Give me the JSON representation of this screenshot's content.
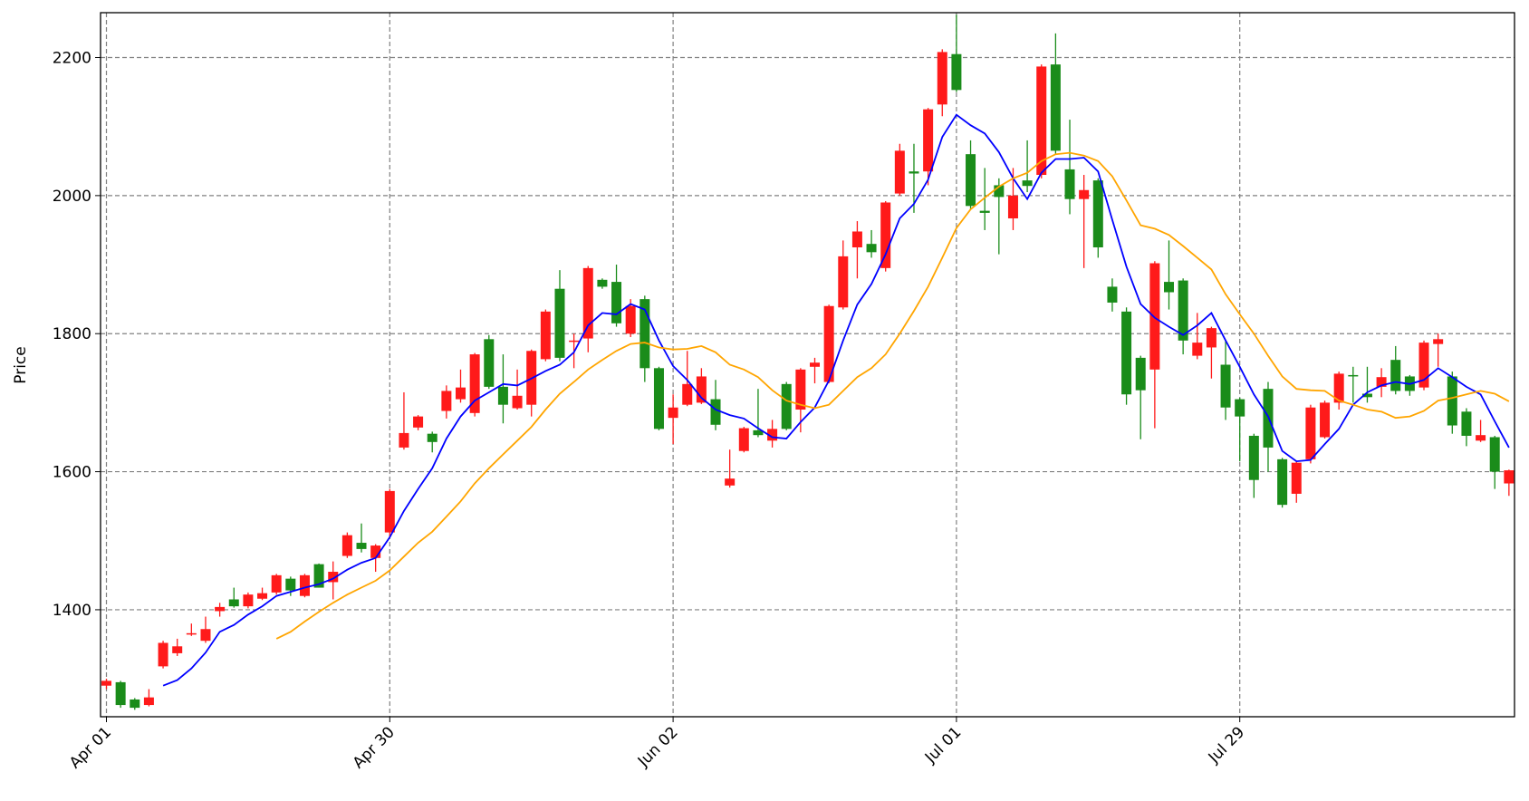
{
  "chart_data": {
    "type": "candlestick",
    "ylabel": "Price",
    "categories": [
      "Apr 01",
      null,
      null,
      null,
      null,
      null,
      null,
      null,
      null,
      null,
      null,
      null,
      null,
      null,
      null,
      null,
      null,
      null,
      null,
      null,
      "Apr 30",
      null,
      null,
      null,
      null,
      null,
      null,
      null,
      null,
      null,
      null,
      null,
      null,
      null,
      null,
      null,
      null,
      null,
      null,
      null,
      "Jun 02",
      null,
      null,
      null,
      null,
      null,
      null,
      null,
      null,
      null,
      null,
      null,
      null,
      null,
      null,
      null,
      null,
      null,
      null,
      null,
      "Jul 01",
      null,
      null,
      null,
      null,
      null,
      null,
      null,
      null,
      null,
      null,
      null,
      null,
      null,
      null,
      null,
      null,
      null,
      null,
      null,
      "Jul 29",
      null,
      null,
      null,
      null,
      null,
      null,
      null,
      null,
      null,
      null,
      null,
      null,
      null,
      null,
      null,
      null,
      null,
      null,
      null
    ],
    "open": [
      1290,
      1295,
      1270,
      1262,
      1318,
      1337,
      1364,
      1355,
      1398,
      1415,
      1405,
      1416,
      1425,
      1445,
      1420,
      1466,
      1440,
      1478,
      1497,
      1475,
      1512,
      1635,
      1664,
      1655,
      1688,
      1705,
      1685,
      1792,
      1723,
      1692,
      1697,
      1763,
      1865,
      1788,
      1793,
      1878,
      1875,
      1800,
      1850,
      1750,
      1678,
      1697,
      1700,
      1705,
      1580,
      1630,
      1660,
      1645,
      1727,
      1690,
      1752,
      1730,
      1838,
      1925,
      1930,
      1895,
      2003,
      2035,
      2035,
      2132,
      2205,
      2060,
      1978,
      2015,
      1967,
      2022,
      2030,
      2190,
      2038,
      1995,
      2022,
      1868,
      1832,
      1765,
      1748,
      1875,
      1877,
      1768,
      1780,
      1755,
      1705,
      1652,
      1720,
      1618,
      1568,
      1618,
      1650,
      1700,
      1740,
      1713,
      1723,
      1762,
      1738,
      1722,
      1785,
      1738,
      1687,
      1645,
      1650,
      1583
    ],
    "high": [
      1300,
      1297,
      1272,
      1285,
      1355,
      1358,
      1380,
      1390,
      1410,
      1432,
      1425,
      1432,
      1452,
      1448,
      1452,
      1467,
      1470,
      1512,
      1525,
      1495,
      1575,
      1715,
      1682,
      1658,
      1725,
      1748,
      1772,
      1798,
      1770,
      1748,
      1777,
      1835,
      1892,
      1800,
      1898,
      1880,
      1900,
      1850,
      1855,
      1752,
      1712,
      1775,
      1750,
      1733,
      1632,
      1665,
      1720,
      1675,
      1730,
      1750,
      1765,
      1842,
      1935,
      1963,
      1950,
      1992,
      2075,
      2075,
      2127,
      2212,
      2262,
      2080,
      2040,
      2025,
      2040,
      2080,
      2190,
      2235,
      2110,
      2030,
      2025,
      1880,
      1838,
      1768,
      1905,
      1935,
      1880,
      1830,
      1810,
      1790,
      1707,
      1655,
      1730,
      1620,
      1615,
      1697,
      1703,
      1745,
      1752,
      1752,
      1750,
      1782,
      1740,
      1790,
      1800,
      1745,
      1692,
      1675,
      1652,
      1603
    ],
    "low": [
      1285,
      1258,
      1255,
      1260,
      1315,
      1333,
      1362,
      1352,
      1390,
      1403,
      1402,
      1414,
      1422,
      1420,
      1418,
      1432,
      1415,
      1475,
      1483,
      1455,
      1505,
      1632,
      1660,
      1628,
      1677,
      1700,
      1680,
      1720,
      1670,
      1690,
      1680,
      1760,
      1760,
      1750,
      1773,
      1865,
      1810,
      1795,
      1730,
      1660,
      1640,
      1695,
      1698,
      1660,
      1577,
      1628,
      1650,
      1635,
      1660,
      1657,
      1728,
      1728,
      1835,
      1880,
      1910,
      1890,
      2000,
      1975,
      2015,
      2115,
      2150,
      1980,
      1950,
      1915,
      1950,
      2005,
      2025,
      2060,
      1973,
      1895,
      1910,
      1832,
      1697,
      1647,
      1663,
      1835,
      1770,
      1763,
      1735,
      1675,
      1615,
      1562,
      1600,
      1548,
      1555,
      1612,
      1648,
      1690,
      1700,
      1700,
      1708,
      1712,
      1710,
      1718,
      1752,
      1655,
      1637,
      1643,
      1575,
      1565
    ],
    "close": [
      1297,
      1262,
      1258,
      1273,
      1352,
      1347,
      1366,
      1372,
      1404,
      1405,
      1422,
      1424,
      1450,
      1428,
      1450,
      1432,
      1455,
      1508,
      1488,
      1493,
      1572,
      1656,
      1680,
      1643,
      1717,
      1722,
      1770,
      1723,
      1697,
      1710,
      1775,
      1832,
      1765,
      1790,
      1895,
      1868,
      1815,
      1840,
      1750,
      1662,
      1693,
      1727,
      1738,
      1668,
      1590,
      1663,
      1653,
      1662,
      1662,
      1748,
      1758,
      1840,
      1912,
      1948,
      1918,
      1990,
      2065,
      2032,
      2125,
      2208,
      2153,
      1985,
      1975,
      1998,
      2000,
      2014,
      2187,
      2065,
      1995,
      2008,
      1925,
      1845,
      1712,
      1718,
      1902,
      1860,
      1790,
      1787,
      1808,
      1693,
      1680,
      1588,
      1635,
      1552,
      1613,
      1693,
      1700,
      1742,
      1738,
      1708,
      1737,
      1717,
      1717,
      1787,
      1792,
      1667,
      1652,
      1653,
      1600,
      1602
    ],
    "up_color": "#ff1a1a",
    "down_color": "#1a8c1a",
    "lines": [
      {
        "color": "#0000ff",
        "values": [
          null,
          null,
          null,
          null,
          1290,
          1298,
          1315,
          1338,
          1368,
          1378,
          1393,
          1405,
          1420,
          1426,
          1432,
          1437,
          1445,
          1458,
          1468,
          1475,
          1505,
          1543,
          1575,
          1605,
          1648,
          1680,
          1703,
          1715,
          1727,
          1725,
          1735,
          1746,
          1755,
          1773,
          1812,
          1830,
          1828,
          1843,
          1835,
          1790,
          1753,
          1733,
          1707,
          1690,
          1682,
          1677,
          1663,
          1650,
          1648,
          1672,
          1693,
          1732,
          1790,
          1842,
          1872,
          1915,
          1967,
          1988,
          2023,
          2085,
          2117,
          2102,
          2090,
          2063,
          2025,
          1995,
          2033,
          2053,
          2053,
          2055,
          2035,
          1965,
          1897,
          1843,
          1823,
          1810,
          1798,
          1812,
          1830,
          1790,
          1752,
          1712,
          1680,
          1630,
          1615,
          1617,
          1640,
          1662,
          1697,
          1715,
          1725,
          1730,
          1727,
          1733,
          1750,
          1737,
          1723,
          1712,
          1673,
          1635
        ]
      },
      {
        "color": "#ffa500",
        "values": [
          null,
          null,
          null,
          null,
          null,
          null,
          null,
          null,
          null,
          null,
          null,
          null,
          1358,
          1368,
          1383,
          1397,
          1410,
          1422,
          1432,
          1442,
          1457,
          1477,
          1497,
          1513,
          1535,
          1557,
          1583,
          1605,
          1625,
          1645,
          1665,
          1690,
          1713,
          1730,
          1748,
          1762,
          1775,
          1785,
          1787,
          1780,
          1777,
          1778,
          1782,
          1773,
          1755,
          1748,
          1737,
          1718,
          1703,
          1697,
          1692,
          1697,
          1717,
          1737,
          1750,
          1770,
          1800,
          1833,
          1868,
          1910,
          1953,
          1980,
          1997,
          2013,
          2025,
          2033,
          2050,
          2060,
          2062,
          2058,
          2050,
          2028,
          1993,
          1957,
          1952,
          1943,
          1927,
          1910,
          1893,
          1857,
          1828,
          1800,
          1768,
          1738,
          1720,
          1718,
          1717,
          1703,
          1697,
          1690,
          1687,
          1678,
          1680,
          1688,
          1703,
          1707,
          1712,
          1717,
          1713,
          1702
        ]
      }
    ],
    "ylim": [
      1245,
      2265
    ],
    "yticks": [
      1400,
      1600,
      1800,
      2000,
      2200
    ],
    "grid": true
  }
}
